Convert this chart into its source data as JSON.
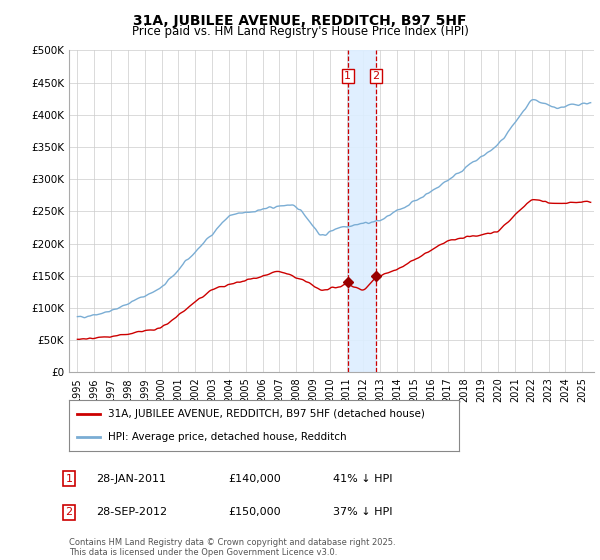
{
  "title": "31A, JUBILEE AVENUE, REDDITCH, B97 5HF",
  "subtitle": "Price paid vs. HM Land Registry's House Price Index (HPI)",
  "ylim": [
    0,
    500000
  ],
  "yticks": [
    0,
    50000,
    100000,
    150000,
    200000,
    250000,
    300000,
    350000,
    400000,
    450000,
    500000
  ],
  "ytick_labels": [
    "£0",
    "£50K",
    "£100K",
    "£150K",
    "£200K",
    "£250K",
    "£300K",
    "£350K",
    "£400K",
    "£450K",
    "£500K"
  ],
  "hpi_color": "#7aadd4",
  "price_color": "#cc0000",
  "marker_color": "#990000",
  "vline_color": "#cc0000",
  "shade_color": "#ddeeff",
  "transaction1": {
    "date_num": 2011.07,
    "price": 140000,
    "label": "1",
    "date_str": "28-JAN-2011"
  },
  "transaction2": {
    "date_num": 2012.75,
    "price": 150000,
    "label": "2",
    "date_str": "28-SEP-2012"
  },
  "legend_label_price": "31A, JUBILEE AVENUE, REDDITCH, B97 5HF (detached house)",
  "legend_label_hpi": "HPI: Average price, detached house, Redditch",
  "footer": "Contains HM Land Registry data © Crown copyright and database right 2025.\nThis data is licensed under the Open Government Licence v3.0.",
  "table_rows": [
    {
      "num": "1",
      "date": "28-JAN-2011",
      "price": "£140,000",
      "hpi": "41% ↓ HPI"
    },
    {
      "num": "2",
      "date": "28-SEP-2012",
      "price": "£150,000",
      "hpi": "37% ↓ HPI"
    }
  ],
  "background_color": "#ffffff",
  "grid_color": "#cccccc",
  "xlim_left": 1994.5,
  "xlim_right": 2025.7
}
